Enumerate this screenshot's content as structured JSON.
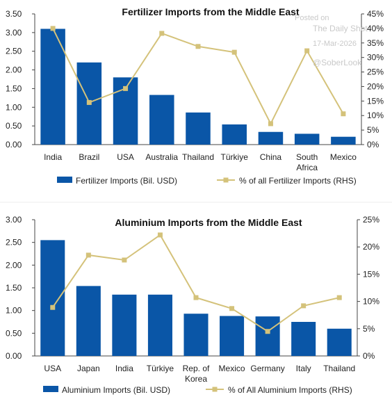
{
  "watermark": {
    "line1": "Posted on",
    "line2": "The Daily Shot",
    "line3": "17-Mar-2026",
    "line4": "@SoberLook"
  },
  "colors": {
    "bar": "#0a56a7",
    "line": "#d4c27a",
    "axis": "#444444"
  },
  "chart_data": [
    {
      "type": "bar",
      "title": "Fertilizer Imports from the Middle East",
      "categories": [
        "India",
        "Brazil",
        "USA",
        "Australia",
        "Thailand",
        "Türkiye",
        "China",
        "South Africa",
        "Mexico"
      ],
      "category_lines": [
        [
          "India"
        ],
        [
          "Brazil"
        ],
        [
          "USA"
        ],
        [
          "Australia"
        ],
        [
          "Thailand"
        ],
        [
          "Türkiye"
        ],
        [
          "China"
        ],
        [
          "South",
          "Africa"
        ],
        [
          "Mexico"
        ]
      ],
      "series": [
        {
          "name": "Fertilizer Imports (Bil. USD)",
          "type": "bar",
          "axis": "left",
          "values": [
            3.1,
            2.2,
            1.8,
            1.33,
            0.86,
            0.54,
            0.34,
            0.29,
            0.21
          ]
        },
        {
          "name": "% of all Fertilizer Imports (RHS)",
          "type": "line",
          "axis": "right",
          "values": [
            40,
            14.5,
            19.3,
            38.3,
            33.8,
            31.8,
            7.2,
            32.3,
            10.6
          ]
        }
      ],
      "y_left": {
        "min": 0,
        "max": 3.5,
        "ticks": [
          "0.00",
          "0.50",
          "1.00",
          "1.50",
          "2.00",
          "2.50",
          "3.00",
          "3.50"
        ]
      },
      "y_right": {
        "min": 0,
        "max": 45,
        "ticks": [
          "0%",
          "5%",
          "10%",
          "15%",
          "20%",
          "25%",
          "30%",
          "35%",
          "40%",
          "45%"
        ]
      },
      "legend_position": "bottom",
      "grid": false
    },
    {
      "type": "bar",
      "title": "Aluminium Imports from the Middle East",
      "categories": [
        "USA",
        "Japan",
        "India",
        "Türkiye",
        "Rep. of Korea",
        "Mexico",
        "Germany",
        "Italy",
        "Thailand"
      ],
      "category_lines": [
        [
          "USA"
        ],
        [
          "Japan"
        ],
        [
          "India"
        ],
        [
          "Türkiye"
        ],
        [
          "Rep. of",
          "Korea"
        ],
        [
          "Mexico"
        ],
        [
          "Germany"
        ],
        [
          "Italy"
        ],
        [
          "Thailand"
        ]
      ],
      "series": [
        {
          "name": "Aluminium Imports (Bil. USD)",
          "type": "bar",
          "axis": "left",
          "values": [
            2.55,
            1.54,
            1.35,
            1.35,
            0.93,
            0.88,
            0.87,
            0.75,
            0.6
          ]
        },
        {
          "name": "% of All Aluminium Imports (RHS)",
          "type": "line",
          "axis": "right",
          "values": [
            8.9,
            18.5,
            17.6,
            22.2,
            10.7,
            8.7,
            4.5,
            9.2,
            10.7
          ]
        }
      ],
      "y_left": {
        "min": 0,
        "max": 3.0,
        "ticks": [
          "0.00",
          "0.50",
          "1.00",
          "1.50",
          "2.00",
          "2.50",
          "3.00"
        ]
      },
      "y_right": {
        "min": 0,
        "max": 25,
        "ticks": [
          "0%",
          "5%",
          "10%",
          "15%",
          "20%",
          "25%"
        ]
      },
      "legend_position": "bottom",
      "grid": false
    }
  ]
}
